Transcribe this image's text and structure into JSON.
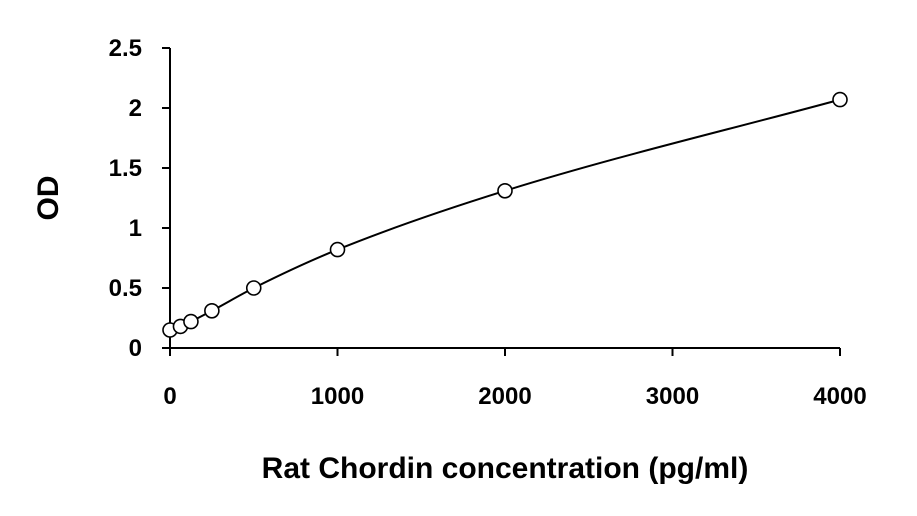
{
  "chart_data": {
    "type": "scatter",
    "title": "",
    "xlabel": "Rat Chordin concentration (pg/ml)",
    "ylabel": "OD",
    "xlim": [
      0,
      4000
    ],
    "ylim": [
      0,
      2.5
    ],
    "x_ticks": [
      "0",
      "1000",
      "2000",
      "3000",
      "4000"
    ],
    "y_ticks": [
      "0",
      "0.5",
      "1",
      "1.5",
      "2",
      "2.5"
    ],
    "grid": false,
    "legend": "none",
    "fit_line": true,
    "series": [
      {
        "x": [
          0,
          62.5,
          125,
          250,
          500,
          1000,
          2000,
          4000
        ],
        "y": [
          0.15,
          0.18,
          0.22,
          0.31,
          0.5,
          0.82,
          1.31,
          2.07
        ]
      }
    ]
  }
}
